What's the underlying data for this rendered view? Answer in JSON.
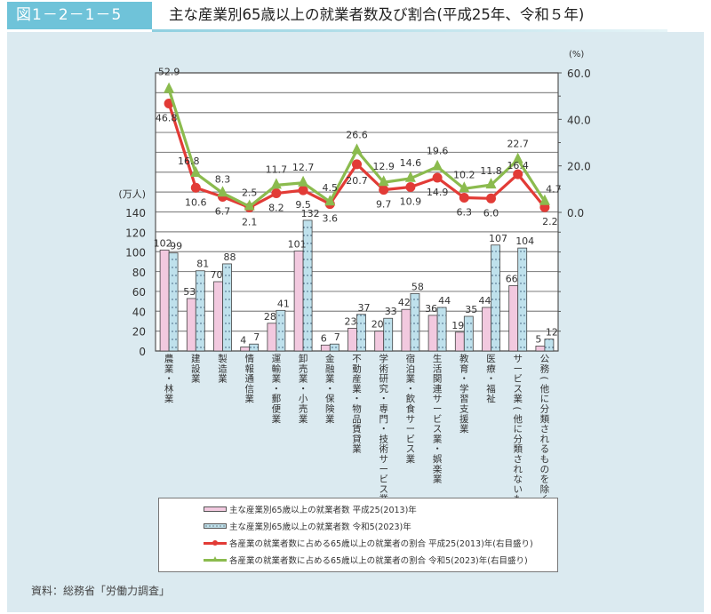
{
  "header": {
    "figure_number": "図1－2－1－5",
    "title": "主な産業別65歳以上の就業者数及び割合(平成25年、令和５年)"
  },
  "source": "資料：総務省「労働力調査」",
  "legend": {
    "items": [
      {
        "label": "主な産業別65歳以上の就業者数 平成25(2013)年",
        "type": "bar",
        "color": "#f2c9df"
      },
      {
        "label": "主な産業別65歳以上の就業者数 令和5(2023)年",
        "type": "bar-dotted",
        "color": "#bfe1ec"
      },
      {
        "label": "各産業の就業者数に占める65歳以上の就業者の割合 平成25(2013)年(右目盛り)",
        "type": "line-circle",
        "color": "#e23b36"
      },
      {
        "label": "各産業の就業者数に占める65歳以上の就業者の割合 令和5(2023)年(右目盛り)",
        "type": "line-triangle",
        "color": "#8bbb4e"
      }
    ]
  },
  "chart_data": {
    "type": "bar+line",
    "title": "主な産業別65歳以上の就業者数及び割合(平成25年、令和５年)",
    "categories": [
      "農業，林業",
      "建設業",
      "製造業",
      "情報通信業",
      "運輸業，郵便業",
      "卸売業，小売業",
      "金融業，保険業",
      "不動産業，物品賃貸業",
      "学術研究，専門・技術サービス業",
      "宿泊業，飲食サービス業",
      "生活関連サービス業，娯楽業",
      "教育，学習支援業",
      "医療，福祉",
      "サービス業(他に分類されないもの)",
      "公務(他に分類されるものを除く)"
    ],
    "series": [
      {
        "name": "主な産業別65歳以上の就業者数 平成25(2013)年",
        "axis": "left",
        "type": "bar",
        "color": "#f2c9df",
        "values": [
          102,
          53,
          70,
          4,
          28,
          101,
          6,
          23,
          20,
          42,
          36,
          19,
          44,
          66,
          5
        ]
      },
      {
        "name": "主な産業別65歳以上の就業者数 令和5(2023)年",
        "axis": "left",
        "type": "bar",
        "color": "#bfe1ec",
        "values": [
          99,
          81,
          88,
          7,
          41,
          132,
          7,
          37,
          33,
          58,
          44,
          35,
          107,
          104,
          12
        ]
      },
      {
        "name": "各産業の就業者数に占める65歳以上の就業者の割合 平成25(2013)年(右目盛り)",
        "axis": "right",
        "type": "line",
        "color": "#e23b36",
        "values": [
          46.8,
          10.6,
          6.7,
          2.1,
          8.2,
          9.5,
          3.6,
          20.7,
          9.7,
          10.9,
          14.9,
          6.3,
          6.0,
          16.4,
          2.2
        ]
      },
      {
        "name": "各産業の就業者数に占める65歳以上の就業者の割合 令和5(2023)年(右目盛り)",
        "axis": "right",
        "type": "line",
        "color": "#8bbb4e",
        "values": [
          52.9,
          16.8,
          8.3,
          2.5,
          11.7,
          12.7,
          4.5,
          26.6,
          12.9,
          14.6,
          19.6,
          10.2,
          11.8,
          22.7,
          4.7
        ]
      }
    ],
    "y_left": {
      "label": "(万人)",
      "range": [
        0,
        140
      ],
      "ticks": [
        0,
        20,
        40,
        60,
        80,
        100,
        120,
        140
      ]
    },
    "y_right": {
      "label": "(%)",
      "range": [
        0,
        60
      ],
      "ticks": [
        "0.0",
        "20.0",
        "40.0",
        "60.0"
      ]
    },
    "grid": true,
    "legend_position": "bottom"
  }
}
